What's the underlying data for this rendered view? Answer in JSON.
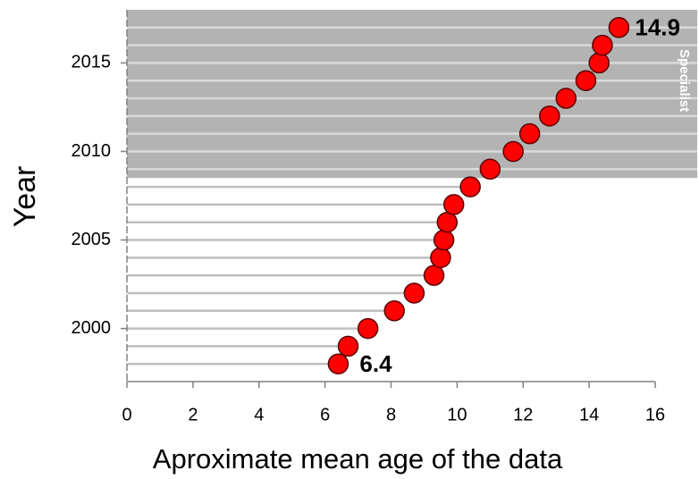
{
  "chart_data": {
    "type": "scatter",
    "x_label": "Aproximate mean age of the data",
    "y_label": "Year",
    "x": [
      6.4,
      6.7,
      7.3,
      8.1,
      8.7,
      9.3,
      9.5,
      9.6,
      9.7,
      9.9,
      10.4,
      11.0,
      11.7,
      12.2,
      12.8,
      13.3,
      13.9,
      14.3,
      14.4,
      14.9
    ],
    "y": [
      1998,
      1999,
      2000,
      2001,
      2002,
      2003,
      2004,
      2005,
      2006,
      2007,
      2008,
      2009,
      2010,
      2011,
      2012,
      2013,
      2014,
      2015,
      2016,
      2017
    ],
    "color": "#ff0000",
    "xlim": [
      0,
      16
    ],
    "xticks": [
      0,
      2,
      4,
      6,
      8,
      10,
      12,
      14,
      16
    ],
    "ylim": [
      1997,
      2018
    ],
    "yticks": [
      2000,
      2005,
      2010,
      2015
    ],
    "shaded_region": {
      "from": 2008.5,
      "label": "Specialist",
      "color": "#b3b3b3"
    }
  }
}
